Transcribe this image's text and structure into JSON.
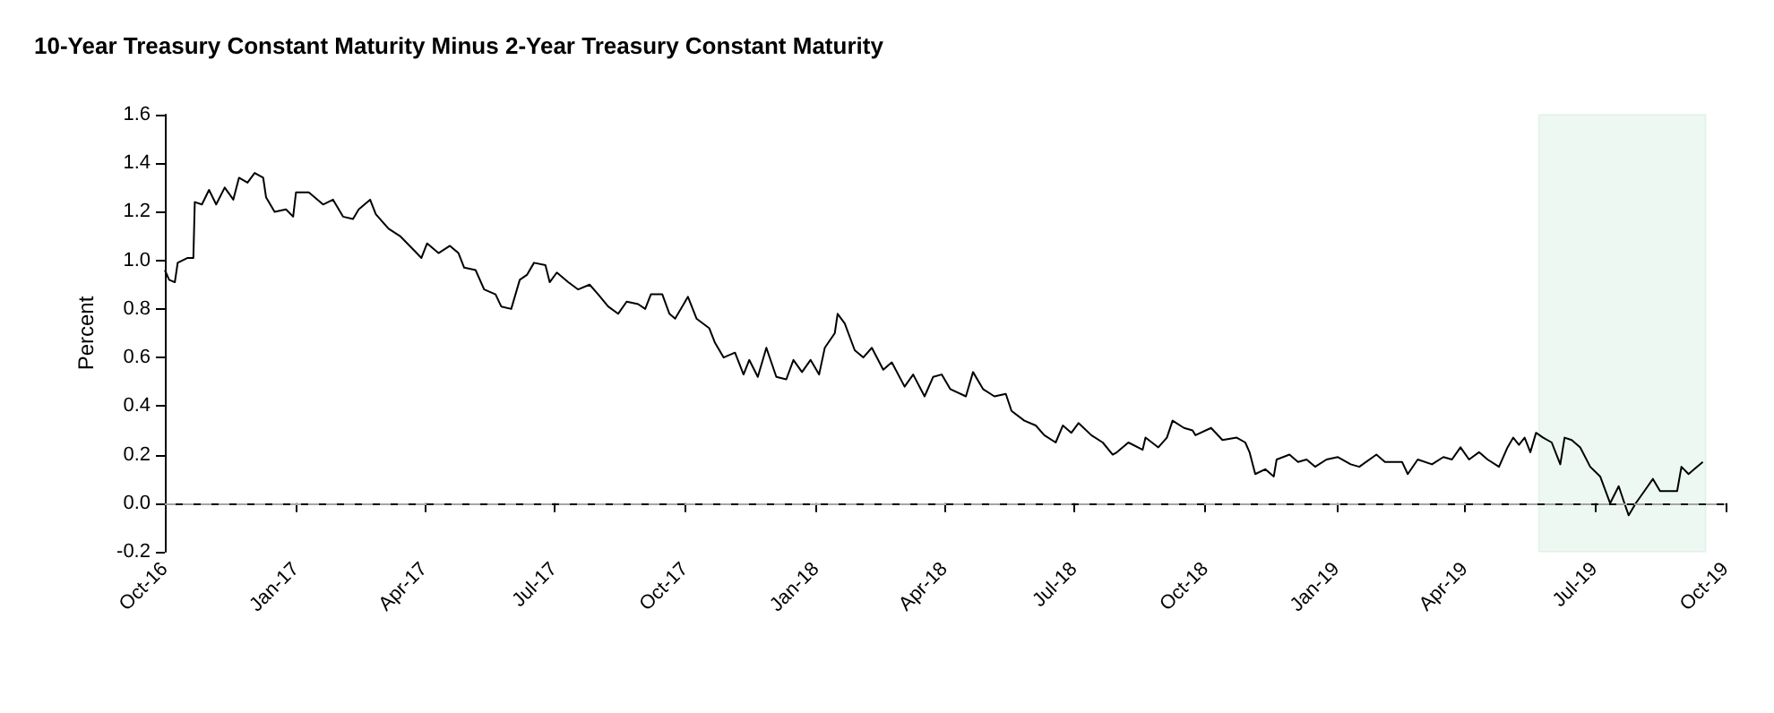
{
  "chart_data": {
    "type": "line",
    "title": "10-Year Treasury Constant Maturity Minus 2-Year Treasury Constant Maturity",
    "ylabel": "Percent",
    "x": [
      "2016-10-01",
      "2016-10-04",
      "2016-10-08",
      "2016-10-10",
      "2016-10-17",
      "2016-10-21",
      "2016-10-22",
      "2016-10-27",
      "2016-11-01",
      "2016-11-06",
      "2016-11-12",
      "2016-11-18",
      "2016-11-22",
      "2016-11-28",
      "2016-12-03",
      "2016-12-09",
      "2016-12-11",
      "2016-12-17",
      "2016-12-25",
      "2016-12-30",
      "2017-01-01",
      "2017-01-10",
      "2017-01-20",
      "2017-01-27",
      "2017-02-03",
      "2017-02-10",
      "2017-02-14",
      "2017-02-22",
      "2017-02-26",
      "2017-03-07",
      "2017-03-15",
      "2017-03-25",
      "2017-03-30",
      "2017-04-03",
      "2017-04-11",
      "2017-04-19",
      "2017-04-25",
      "2017-04-29",
      "2017-05-07",
      "2017-05-13",
      "2017-05-21",
      "2017-05-25",
      "2017-06-01",
      "2017-06-07",
      "2017-06-12",
      "2017-06-17",
      "2017-06-25",
      "2017-06-28",
      "2017-07-03",
      "2017-07-11",
      "2017-07-18",
      "2017-07-26",
      "2017-08-01",
      "2017-08-08",
      "2017-08-15",
      "2017-08-21",
      "2017-08-29",
      "2017-09-03",
      "2017-09-07",
      "2017-09-15",
      "2017-09-20",
      "2017-09-24",
      "2017-10-03",
      "2017-10-09",
      "2017-10-18",
      "2017-10-22",
      "2017-10-28",
      "2017-11-05",
      "2017-11-11",
      "2017-11-15",
      "2017-11-21",
      "2017-11-27",
      "2017-12-04",
      "2017-12-11",
      "2017-12-16",
      "2017-12-22",
      "2017-12-28",
      "2018-01-03",
      "2018-01-07",
      "2018-01-14",
      "2018-01-16",
      "2018-01-21",
      "2018-01-28",
      "2018-02-03",
      "2018-02-09",
      "2018-02-17",
      "2018-02-23",
      "2018-03-04",
      "2018-03-10",
      "2018-03-18",
      "2018-03-24",
      "2018-03-30",
      "2018-04-05",
      "2018-04-16",
      "2018-04-21",
      "2018-04-28",
      "2018-05-06",
      "2018-05-14",
      "2018-05-18",
      "2018-05-27",
      "2018-06-04",
      "2018-06-10",
      "2018-06-18",
      "2018-06-23",
      "2018-06-29",
      "2018-07-04",
      "2018-07-13",
      "2018-07-21",
      "2018-07-28",
      "2018-07-31",
      "2018-08-08",
      "2018-08-18",
      "2018-08-20",
      "2018-08-29",
      "2018-09-04",
      "2018-09-08",
      "2018-09-16",
      "2018-09-22",
      "2018-09-24",
      "2018-10-05",
      "2018-10-13",
      "2018-10-23",
      "2018-10-29",
      "2018-11-01",
      "2018-11-05",
      "2018-11-12",
      "2018-11-18",
      "2018-11-20",
      "2018-11-29",
      "2018-12-05",
      "2018-12-11",
      "2018-12-17",
      "2018-12-25",
      "2019-01-02",
      "2019-01-11",
      "2019-01-17",
      "2019-01-29",
      "2019-02-04",
      "2019-02-16",
      "2019-02-20",
      "2019-02-27",
      "2019-03-09",
      "2019-03-17",
      "2019-03-23",
      "2019-03-29",
      "2019-04-04",
      "2019-04-11",
      "2019-04-17",
      "2019-04-25",
      "2019-05-01",
      "2019-05-05",
      "2019-05-09",
      "2019-05-13",
      "2019-05-17",
      "2019-05-21",
      "2019-05-26",
      "2019-06-01",
      "2019-06-07",
      "2019-06-10",
      "2019-06-15",
      "2019-06-21",
      "2019-06-28",
      "2019-07-05",
      "2019-07-12",
      "2019-07-18",
      "2019-07-22",
      "2019-07-25",
      "2019-07-30",
      "2019-08-05",
      "2019-08-11",
      "2019-08-16",
      "2019-08-23",
      "2019-08-28",
      "2019-08-31",
      "2019-09-05",
      "2019-09-09",
      "2019-09-15"
    ],
    "series": [
      {
        "color": "#000000",
        "values": [
          0.96,
          0.92,
          0.91,
          0.99,
          1.01,
          1.01,
          1.24,
          1.23,
          1.29,
          1.23,
          1.3,
          1.25,
          1.34,
          1.32,
          1.36,
          1.34,
          1.26,
          1.2,
          1.21,
          1.18,
          1.28,
          1.28,
          1.23,
          1.25,
          1.18,
          1.17,
          1.21,
          1.25,
          1.19,
          1.13,
          1.1,
          1.04,
          1.01,
          1.07,
          1.03,
          1.06,
          1.03,
          0.97,
          0.96,
          0.88,
          0.86,
          0.81,
          0.8,
          0.92,
          0.94,
          0.99,
          0.98,
          0.91,
          0.95,
          0.91,
          0.88,
          0.9,
          0.86,
          0.81,
          0.78,
          0.83,
          0.82,
          0.8,
          0.86,
          0.86,
          0.78,
          0.76,
          0.85,
          0.76,
          0.72,
          0.66,
          0.6,
          0.62,
          0.53,
          0.59,
          0.52,
          0.64,
          0.52,
          0.51,
          0.59,
          0.54,
          0.59,
          0.53,
          0.64,
          0.7,
          0.78,
          0.74,
          0.63,
          0.6,
          0.64,
          0.55,
          0.58,
          0.48,
          0.53,
          0.44,
          0.52,
          0.53,
          0.47,
          0.44,
          0.54,
          0.47,
          0.44,
          0.45,
          0.38,
          0.34,
          0.32,
          0.28,
          0.25,
          0.32,
          0.29,
          0.33,
          0.28,
          0.25,
          0.2,
          0.21,
          0.25,
          0.22,
          0.27,
          0.23,
          0.27,
          0.34,
          0.31,
          0.3,
          0.28,
          0.31,
          0.26,
          0.27,
          0.25,
          0.21,
          0.12,
          0.14,
          0.11,
          0.18,
          0.2,
          0.17,
          0.18,
          0.15,
          0.18,
          0.19,
          0.16,
          0.15,
          0.2,
          0.17,
          0.17,
          0.12,
          0.18,
          0.16,
          0.19,
          0.18,
          0.23,
          0.18,
          0.21,
          0.18,
          0.15,
          0.23,
          0.27,
          0.24,
          0.27,
          0.21,
          0.29,
          0.27,
          0.25,
          0.16,
          0.27,
          0.26,
          0.23,
          0.15,
          0.11,
          0.0,
          0.07,
          0.0,
          -0.05,
          0.0,
          0.05,
          0.1,
          0.05,
          0.05,
          0.05,
          0.15,
          0.12,
          0.14,
          0.17
        ]
      }
    ],
    "xlim": [
      "2016-10-01",
      "2019-10-01"
    ],
    "xticks": [
      {
        "value": "2016-10-01",
        "label": "Oct-16"
      },
      {
        "value": "2017-01-01",
        "label": "Jan-17"
      },
      {
        "value": "2017-04-01",
        "label": "Apr-17"
      },
      {
        "value": "2017-07-01",
        "label": "Jul-17"
      },
      {
        "value": "2017-10-01",
        "label": "Oct-17"
      },
      {
        "value": "2018-01-01",
        "label": "Jan-18"
      },
      {
        "value": "2018-04-01",
        "label": "Apr-18"
      },
      {
        "value": "2018-07-01",
        "label": "Jul-18"
      },
      {
        "value": "2018-10-01",
        "label": "Oct-18"
      },
      {
        "value": "2019-01-01",
        "label": "Jan-19"
      },
      {
        "value": "2019-04-01",
        "label": "Apr-19"
      },
      {
        "value": "2019-07-01",
        "label": "Jul-19"
      },
      {
        "value": "2019-10-01",
        "label": "Oct-19"
      }
    ],
    "ylim": [
      -0.2,
      1.6
    ],
    "yticks": [
      {
        "value": -0.2,
        "label": "-0.2"
      },
      {
        "value": 0,
        "label": "0.0"
      },
      {
        "value": 0.2,
        "label": "0.2"
      },
      {
        "value": 0.4,
        "label": "0.4"
      },
      {
        "value": 0.6,
        "label": "0.6"
      },
      {
        "value": 0.8,
        "label": "0.8"
      },
      {
        "value": 1,
        "label": "1.0"
      },
      {
        "value": 1.2,
        "label": "1.2"
      },
      {
        "value": 1.4,
        "label": "1.4"
      },
      {
        "value": 1.6,
        "label": "1.6"
      }
    ],
    "ref_lines": [
      {
        "axis": "y",
        "value": 0,
        "color": "#a6a6a6",
        "line_style": "dashed"
      }
    ],
    "bands": [
      {
        "axis": "x",
        "from": "2019-05-23",
        "to": "2019-09-17",
        "color": "#2ca66b"
      }
    ],
    "marker": "none",
    "line_style": "solid",
    "grid": false
  }
}
